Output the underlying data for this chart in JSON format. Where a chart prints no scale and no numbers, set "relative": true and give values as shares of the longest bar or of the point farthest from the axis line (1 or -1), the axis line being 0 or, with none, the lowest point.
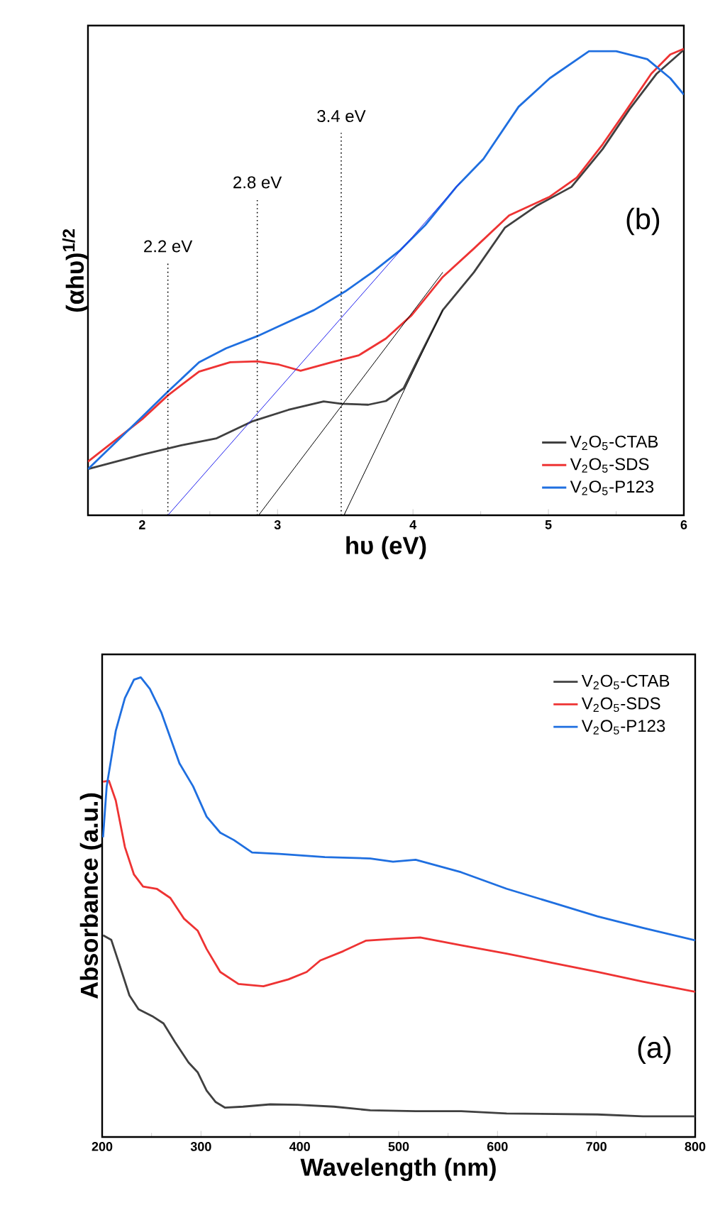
{
  "chart_data": [
    {
      "type": "line",
      "relative": true,
      "xlabel": "hυ (eV)",
      "ylabel": "(αhυ)$^{1/2}$",
      "xlim": [
        1.6,
        6
      ],
      "xticks": [
        2,
        3,
        4,
        5,
        6
      ],
      "legend": "bottom right",
      "line_style": "solid",
      "annotations": [
        "(b)",
        "2.2 eV",
        "2.8 eV",
        "3.4 eV"
      ],
      "series": [
        {
          "name": "V$_{2}$O$_{5}$-CTAB",
          "color": "#404040",
          "x": [
            1.6,
            2.0,
            2.29,
            2.55,
            2.81,
            3.08,
            3.34,
            3.47,
            3.67,
            3.8,
            3.93,
            4.06,
            4.22,
            4.45,
            4.68,
            4.91,
            5.17,
            5.4,
            5.6,
            5.8,
            6.0
          ],
          "values": [
            0.099,
            0.13,
            0.15,
            0.165,
            0.201,
            0.226,
            0.244,
            0.239,
            0.237,
            0.245,
            0.272,
            0.348,
            0.44,
            0.521,
            0.617,
            0.663,
            0.704,
            0.785,
            0.871,
            0.947,
            0.998
          ]
        },
        {
          "name": "V$_{2}$O$_{5}$-SDS",
          "color": "#ee3333",
          "x": [
            1.6,
            2.0,
            2.19,
            2.42,
            2.65,
            2.85,
            3.01,
            3.17,
            3.4,
            3.6,
            3.8,
            3.99,
            4.22,
            4.45,
            4.71,
            5.01,
            5.21,
            5.4,
            5.57,
            5.76,
            5.9,
            6.0
          ],
          "values": [
            0.115,
            0.206,
            0.257,
            0.308,
            0.328,
            0.33,
            0.323,
            0.31,
            0.328,
            0.343,
            0.379,
            0.429,
            0.511,
            0.572,
            0.643,
            0.683,
            0.724,
            0.795,
            0.866,
            0.947,
            0.988,
            1.0
          ]
        },
        {
          "name": "V$_{2}$O$_{5}$-P123",
          "color": "#1f6fe0",
          "x": [
            1.6,
            2.0,
            2.19,
            2.42,
            2.62,
            2.85,
            3.0,
            3.27,
            3.5,
            3.7,
            3.9,
            4.09,
            4.32,
            4.52,
            4.78,
            5.01,
            5.3,
            5.5,
            5.73,
            5.9,
            6.0
          ],
          "values": [
            0.099,
            0.211,
            0.265,
            0.328,
            0.358,
            0.384,
            0.404,
            0.44,
            0.48,
            0.521,
            0.567,
            0.622,
            0.704,
            0.764,
            0.876,
            0.937,
            0.995,
            0.995,
            0.978,
            0.937,
            0.902
          ]
        },
        {
          "type": "line",
          "color": "#2020ee",
          "x": [
            2.19,
            4.35
          ],
          "values": [
            0.0,
            0.714
          ]
        },
        {
          "type": "line",
          "color": "#000000",
          "x": [
            2.86,
            4.22
          ],
          "values": [
            0.0,
            0.521
          ]
        },
        {
          "type": "line",
          "color": "#000000",
          "x": [
            3.49,
            4.22
          ],
          "values": [
            0.0,
            0.44
          ]
        },
        {
          "type": "line",
          "color": "#000000",
          "line_style": "dotted",
          "x": [
            2.19,
            2.19
          ],
          "values": [
            0.0,
            0.541
          ]
        },
        {
          "type": "line",
          "color": "#000000",
          "line_style": "dotted",
          "x": [
            2.85,
            2.85
          ],
          "values": [
            0.0,
            0.678
          ]
        },
        {
          "type": "line",
          "color": "#000000",
          "line_style": "dotted",
          "x": [
            3.47,
            3.47
          ],
          "values": [
            0.0,
            0.82
          ]
        }
      ]
    },
    {
      "type": "line",
      "relative": true,
      "xlabel": "Wavelength (nm)",
      "ylabel": "Absorbance (a.u.)",
      "xlim": [
        200,
        800
      ],
      "xticks": [
        200,
        300,
        400,
        500,
        600,
        700,
        800
      ],
      "legend": "top right",
      "line_style": "solid",
      "annotations": [
        "(a)"
      ],
      "series": [
        {
          "name": "V$_{2}$O$_{5}$-CTAB",
          "color": "#404040",
          "x": [
            200.9,
            209.2,
            218.4,
            227.6,
            236.8,
            250.6,
            262.1,
            273.6,
            287.4,
            296.6,
            305.7,
            314.9,
            324.1,
            342.5,
            370.1,
            397.7,
            434.5,
            471.3,
            517.2,
            563.2,
            609.2,
            701.1,
            747.1,
            800
          ],
          "values": [
            0.439,
            0.429,
            0.369,
            0.308,
            0.278,
            0.263,
            0.247,
            0.207,
            0.162,
            0.141,
            0.101,
            0.076,
            0.064,
            0.066,
            0.071,
            0.07,
            0.066,
            0.058,
            0.056,
            0.056,
            0.051,
            0.049,
            0.045,
            0.045
          ]
        },
        {
          "name": "V$_{2}$O$_{5}$-SDS",
          "color": "#ee3333",
          "x": [
            200.9,
            206.9,
            213.8,
            223,
            232.2,
            241.4,
            255.2,
            269,
            282.8,
            296.6,
            305.7,
            319.5,
            337.9,
            363.2,
            388.5,
            406.9,
            420.7,
            443.7,
            466.7,
            494.3,
            521.8,
            563.2,
            609.2,
            655.2,
            701.1,
            747.1,
            800
          ],
          "values": [
            0.773,
            0.775,
            0.732,
            0.631,
            0.571,
            0.545,
            0.54,
            0.52,
            0.475,
            0.449,
            0.409,
            0.359,
            0.333,
            0.328,
            0.343,
            0.359,
            0.384,
            0.404,
            0.427,
            0.431,
            0.434,
            0.417,
            0.399,
            0.379,
            0.359,
            0.338,
            0.316
          ]
        },
        {
          "name": "V$_{2}$O$_{5}$-P123",
          "color": "#1f6fe0",
          "x": [
            200.9,
            204.6,
            213.8,
            223,
            232.2,
            239.1,
            248.3,
            259.8,
            278.2,
            292,
            305.7,
            319.5,
            333.3,
            351.7,
            379.3,
            425.3,
            471.3,
            494.3,
            517.2,
            563.2,
            609.2,
            655.2,
            701.1,
            747.1,
            800
          ],
          "values": [
            0.652,
            0.763,
            0.884,
            0.955,
            0.995,
            1.0,
            0.975,
            0.924,
            0.813,
            0.763,
            0.697,
            0.662,
            0.646,
            0.619,
            0.616,
            0.609,
            0.606,
            0.599,
            0.603,
            0.576,
            0.54,
            0.51,
            0.48,
            0.455,
            0.428
          ]
        }
      ]
    }
  ]
}
